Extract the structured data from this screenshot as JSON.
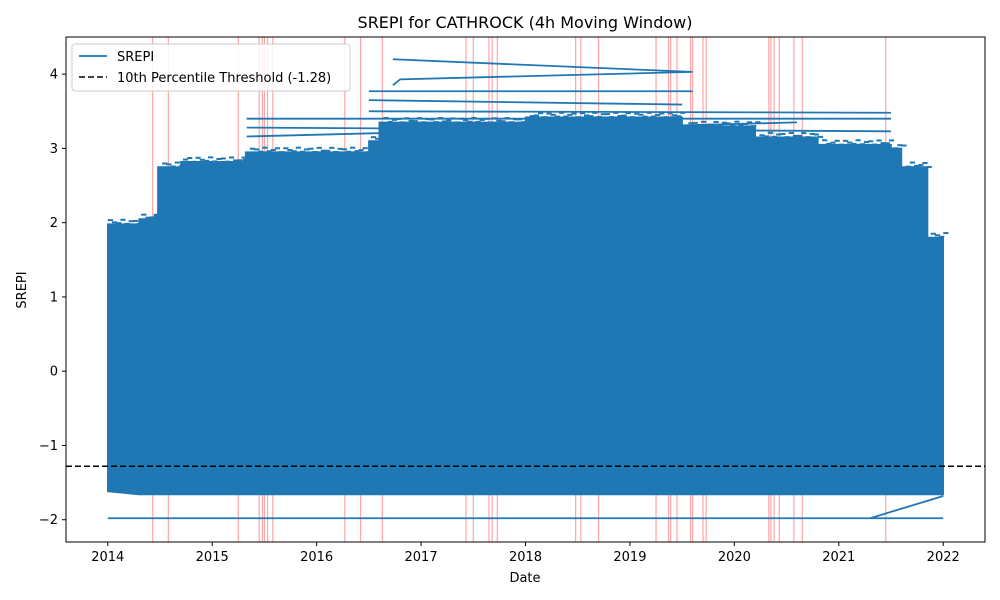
{
  "chart_data": {
    "type": "line",
    "title": "SREPI for CATHROCK (4h Moving Window)",
    "xlabel": "Date",
    "ylabel": "SREPI",
    "x_ticks": [
      "2014",
      "2015",
      "2016",
      "2017",
      "2018",
      "2019",
      "2020",
      "2021",
      "2022"
    ],
    "y_ticks": [
      -2,
      -1,
      0,
      1,
      2,
      3,
      4
    ],
    "y_tick_labels": [
      "−2",
      "−1",
      "0",
      "1",
      "2",
      "3",
      "4"
    ],
    "xlim": [
      2013.6,
      2022.4
    ],
    "ylim": [
      -2.3,
      4.5
    ],
    "grid": false,
    "legend_position": "top-left",
    "series": [
      {
        "name": "SREPI",
        "color": "#1f77b4",
        "style": "solid",
        "data_range": [
          2014.0,
          2022.0
        ],
        "envelope": [
          {
            "x": 2014.0,
            "lower": -1.62,
            "upper": 1.98
          },
          {
            "x": 2014.3,
            "lower": -1.66,
            "upper": 2.05
          },
          {
            "x": 2014.45,
            "lower": -1.66,
            "upper": 2.1
          },
          {
            "x": 2014.48,
            "lower": -1.66,
            "upper": 2.75
          },
          {
            "x": 2014.7,
            "lower": -1.66,
            "upper": 2.82
          },
          {
            "x": 2015.3,
            "lower": -1.66,
            "upper": 2.85
          },
          {
            "x": 2015.32,
            "lower": -1.66,
            "upper": 2.95
          },
          {
            "x": 2016.5,
            "lower": -1.66,
            "upper": 3.1
          },
          {
            "x": 2016.6,
            "lower": -1.66,
            "upper": 3.35
          },
          {
            "x": 2018.0,
            "lower": -1.66,
            "upper": 3.42
          },
          {
            "x": 2019.5,
            "lower": -1.66,
            "upper": 3.3
          },
          {
            "x": 2020.2,
            "lower": -1.66,
            "upper": 3.15
          },
          {
            "x": 2020.8,
            "lower": -1.66,
            "upper": 3.05
          },
          {
            "x": 2021.5,
            "lower": -1.66,
            "upper": 3.0
          },
          {
            "x": 2021.6,
            "lower": -1.66,
            "upper": 2.75
          },
          {
            "x": 2021.85,
            "lower": -1.66,
            "upper": 1.8
          },
          {
            "x": 2022.0,
            "lower": -1.66,
            "upper": 1.58
          }
        ],
        "stray_segments": [
          {
            "x": [
              2016.73,
              2019.6,
              2016.8,
              2016.73
            ],
            "y": [
              4.2,
              4.03,
              3.93,
              3.85
            ]
          },
          {
            "x": [
              2016.5,
              2019.6
            ],
            "y": [
              3.77,
              3.77
            ]
          },
          {
            "x": [
              2016.5,
              2019.5
            ],
            "y": [
              3.65,
              3.59
            ]
          },
          {
            "x": [
              2016.5,
              2021.5
            ],
            "y": [
              3.5,
              3.48
            ]
          },
          {
            "x": [
              2015.33,
              2021.5
            ],
            "y": [
              3.4,
              3.4
            ]
          },
          {
            "x": [
              2015.33,
              2021.5
            ],
            "y": [
              3.28,
              3.23
            ]
          },
          {
            "x": [
              2015.33,
              2020.6
            ],
            "y": [
              3.16,
              3.35
            ]
          },
          {
            "x": [
              2014.0,
              2022.0
            ],
            "y": [
              -1.98,
              -1.98
            ]
          },
          {
            "x": [
              2021.3,
              2022.0
            ],
            "y": [
              -1.98,
              -1.68
            ]
          }
        ]
      },
      {
        "name": "10th Percentile Threshold (-1.28)",
        "color": "#000000",
        "style": "dashed",
        "value": -1.28
      }
    ],
    "event_lines": {
      "color": "#ff0000",
      "opacity": 0.35,
      "x": [
        2014.43,
        2014.58,
        2015.25,
        2015.45,
        2015.48,
        2015.5,
        2015.53,
        2015.58,
        2016.27,
        2016.42,
        2016.63,
        2017.43,
        2017.5,
        2017.65,
        2017.68,
        2017.73,
        2018.48,
        2018.53,
        2018.7,
        2019.25,
        2019.37,
        2019.39,
        2019.45,
        2019.58,
        2019.6,
        2019.7,
        2019.73,
        2020.33,
        2020.35,
        2020.38,
        2020.43,
        2020.57,
        2020.65,
        2021.45
      ]
    }
  }
}
